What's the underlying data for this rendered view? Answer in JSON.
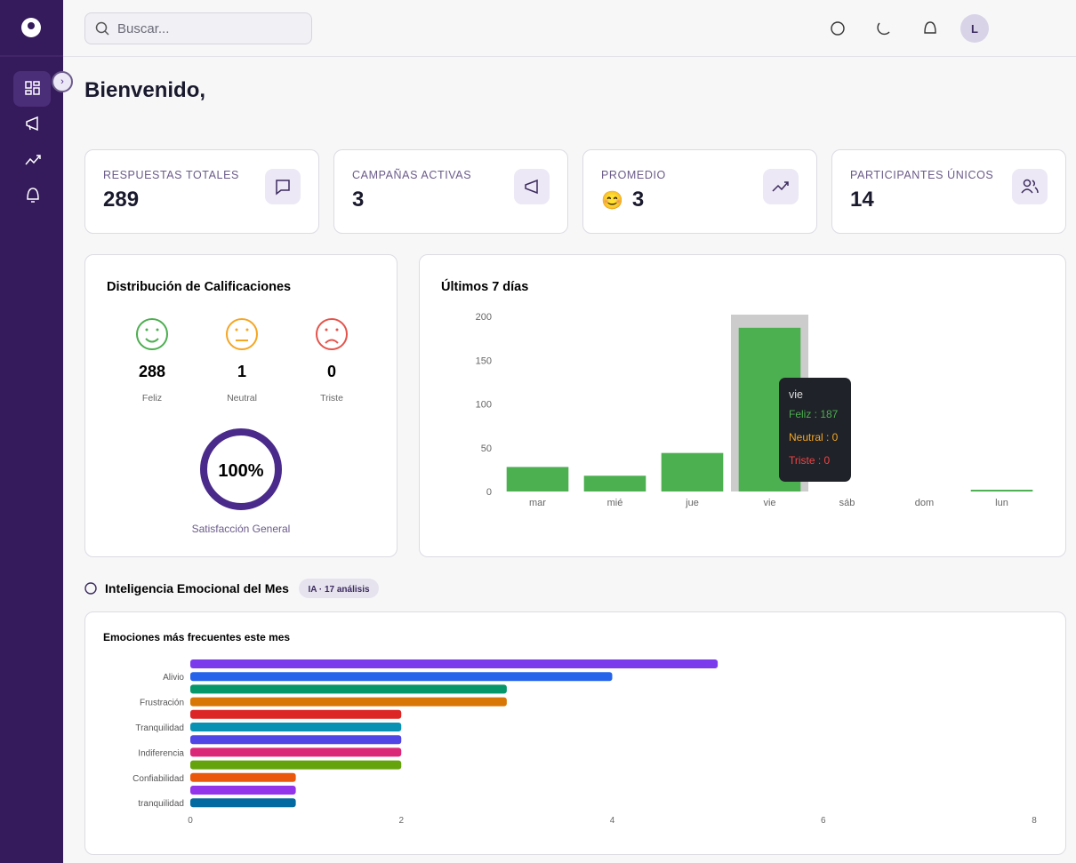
{
  "search_placeholder": "Buscar...",
  "avatar": "L",
  "greeting": "Bienvenido,",
  "stats": [
    {
      "label": "RESPUESTAS TOTALES",
      "value": 289
    },
    {
      "label": "CAMPAÑAS ACTIVAS",
      "value": 3
    },
    {
      "label": "PROMEDIO",
      "emoji": "😊",
      "value": 3
    },
    {
      "label": "PARTICIPANTES ÚNICOS",
      "value": 14
    }
  ],
  "distribution": {
    "title": "Distribución de Calificaciones",
    "items": [
      {
        "label": "Feliz",
        "value": 288,
        "color": "#4caf50"
      },
      {
        "label": "Neutral",
        "value": 1,
        "color": "#f5a623"
      },
      {
        "label": "Triste",
        "value": 0,
        "color": "#e5534b"
      }
    ],
    "satisfaction": {
      "value": 100,
      "label": "100%",
      "color": "#4a2a8a"
    },
    "satisfaction_label": "Satisfacción General"
  },
  "chart_data": [
    {
      "type": "bar",
      "stacked": true,
      "title": "Últimos 7 días",
      "categories": [
        "mar",
        "mié",
        "jue",
        "vie",
        "sáb",
        "dom",
        "lun"
      ],
      "series": [
        {
          "name": "Feliz",
          "color": "#4caf50",
          "values": [
            28,
            18,
            44,
            187,
            0,
            0,
            2
          ]
        },
        {
          "name": "Neutral",
          "color": "#f5a623",
          "values": [
            0,
            0,
            0,
            0,
            0,
            0,
            0
          ]
        },
        {
          "name": "Triste",
          "color": "#ef4444",
          "values": [
            0,
            0,
            0,
            0,
            0,
            0,
            0
          ]
        }
      ],
      "ylim": [
        0,
        200
      ],
      "yticks": [
        0,
        50,
        100,
        150,
        200
      ],
      "grid": false,
      "tooltip": {
        "title": "vie",
        "rows": [
          "Feliz : 187",
          "Neutral : 0",
          "Triste : 0"
        ]
      }
    },
    {
      "type": "hbar",
      "title": "Emociones más frecuentes este mes",
      "categories": [
        null,
        "Alivio",
        null,
        "Frustración",
        null,
        "Tranquilidad",
        null,
        "Indiferencia",
        null,
        "Confiabilidad",
        null,
        "tranquilidad"
      ],
      "values": [
        5,
        4,
        3,
        3,
        2,
        2,
        2,
        2,
        2,
        1,
        1,
        1
      ],
      "colors": [
        "#7c3aed",
        "#2563eb",
        "#059669",
        "#d97706",
        "#dc2626",
        "#0891b2",
        "#4f46e5",
        "#db2777",
        "#65a30d",
        "#ea580c",
        "#9333ea",
        "#0369a1"
      ],
      "xlim": [
        0,
        8
      ],
      "xticks": [
        0,
        2,
        4,
        6,
        8
      ]
    }
  ],
  "section": {
    "title": "Inteligencia Emocional del Mes",
    "badge": "IA · 17 análisis"
  }
}
